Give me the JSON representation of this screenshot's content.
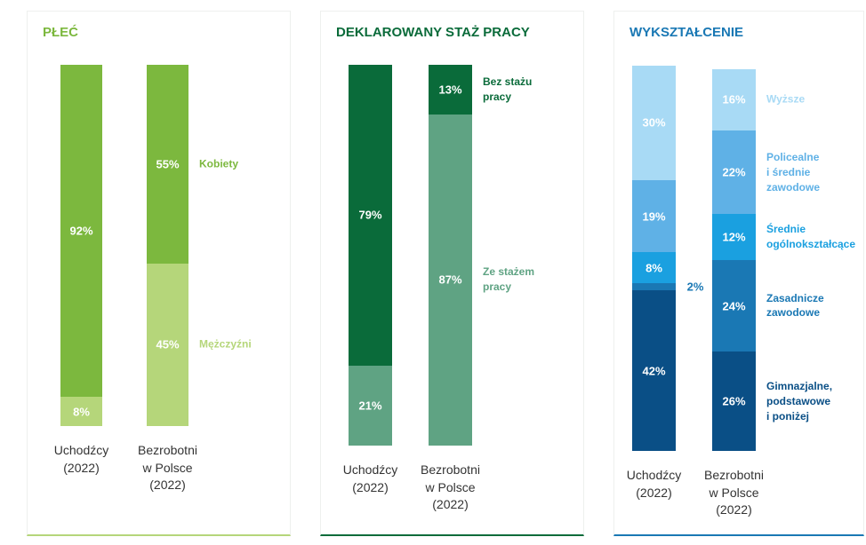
{
  "chart_data": [
    {
      "type": "bar",
      "stacked": true,
      "title": "PŁEĆ",
      "title_color": "#7cb83e",
      "ylim": [
        0,
        100
      ],
      "categories": [
        "Uchodźcy\n(2022)",
        "Bezrobotni\nw Polsce\n(2022)"
      ],
      "series": [
        {
          "name": "Mężczyźni",
          "color": "#b5d67a",
          "values": [
            8,
            45
          ],
          "value_labels": [
            "8%",
            "45%"
          ]
        },
        {
          "name": "Kobiety",
          "color": "#7cb83e",
          "values": [
            92,
            55
          ],
          "value_labels": [
            "92%",
            "55%"
          ]
        }
      ]
    },
    {
      "type": "bar",
      "stacked": true,
      "title": "DEKLAROWANY STAŻ PRACY",
      "title_color": "#0a6b3a",
      "ylim": [
        0,
        100
      ],
      "categories": [
        "Uchodźcy\n(2022)",
        "Bezrobotni\nw Polsce\n(2022)"
      ],
      "series": [
        {
          "name": "Ze stażem\npracy",
          "color": "#5fa383",
          "values": [
            21,
            87
          ],
          "value_labels": [
            "21%",
            "87%"
          ]
        },
        {
          "name": "Bez stażu\npracy",
          "color": "#0a6b3a",
          "values": [
            79,
            13
          ],
          "value_labels": [
            "79%",
            "13%"
          ]
        }
      ]
    },
    {
      "type": "bar",
      "stacked": true,
      "title": "WYKSZTAŁCENIE",
      "title_color": "#1a78b4",
      "ylim": [
        0,
        100
      ],
      "categories": [
        "Uchodźcy\n(2022)",
        "Bezrobotni\nw Polsce\n(2022)"
      ],
      "series": [
        {
          "name": "Gimnazjalne,\npodstawowe\ni poniżej",
          "color": "#0a4f86",
          "values": [
            42,
            26
          ],
          "value_labels": [
            "42%",
            "26%"
          ]
        },
        {
          "name": "Zasadnicze\nzawodowe",
          "color": "#1a78b4",
          "values": [
            2,
            24
          ],
          "value_labels": [
            "2%",
            "24%"
          ]
        },
        {
          "name": "Średnie\nogólnokształcące",
          "color": "#1aa0e0",
          "values": [
            8,
            12
          ],
          "value_labels": [
            "8%",
            "12%"
          ]
        },
        {
          "name": "Policealne\ni średnie\nzawodowe",
          "color": "#5fb1e6",
          "values": [
            19,
            22
          ],
          "value_labels": [
            "19%",
            "22%"
          ]
        },
        {
          "name": "Wyższe",
          "color": "#a8daf5",
          "values": [
            30,
            16
          ],
          "value_labels": [
            "30%",
            "16%"
          ]
        }
      ]
    }
  ]
}
